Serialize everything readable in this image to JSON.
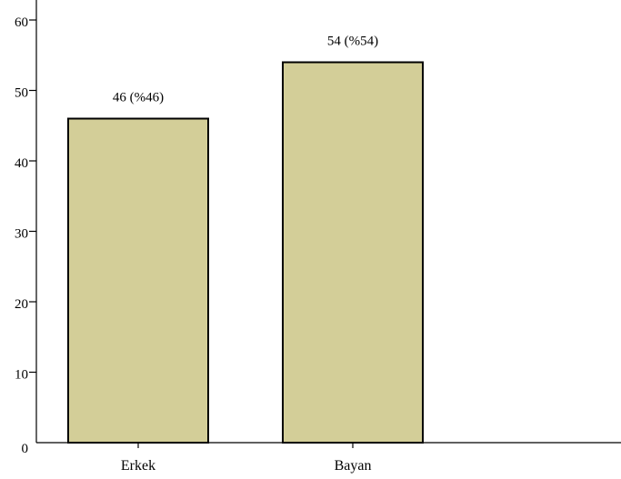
{
  "chart_data": {
    "type": "bar",
    "title": "",
    "xlabel": "",
    "ylabel": "",
    "categories": [
      "Erkek",
      "Bayan"
    ],
    "values": [
      46,
      54
    ],
    "data_labels": [
      "46 (%46)",
      "54 (%54)"
    ],
    "ylim": [
      0,
      63
    ],
    "yticks": [
      0,
      10,
      20,
      30,
      40,
      50,
      60
    ],
    "ytick_labels": [
      "0",
      "10",
      "20",
      "30",
      "40",
      "50",
      "60"
    ],
    "grid": false,
    "legend": "none",
    "colors": {
      "bar_fill": "#D3CE98",
      "bar_stroke": "#000000",
      "axis": "#000000"
    }
  }
}
